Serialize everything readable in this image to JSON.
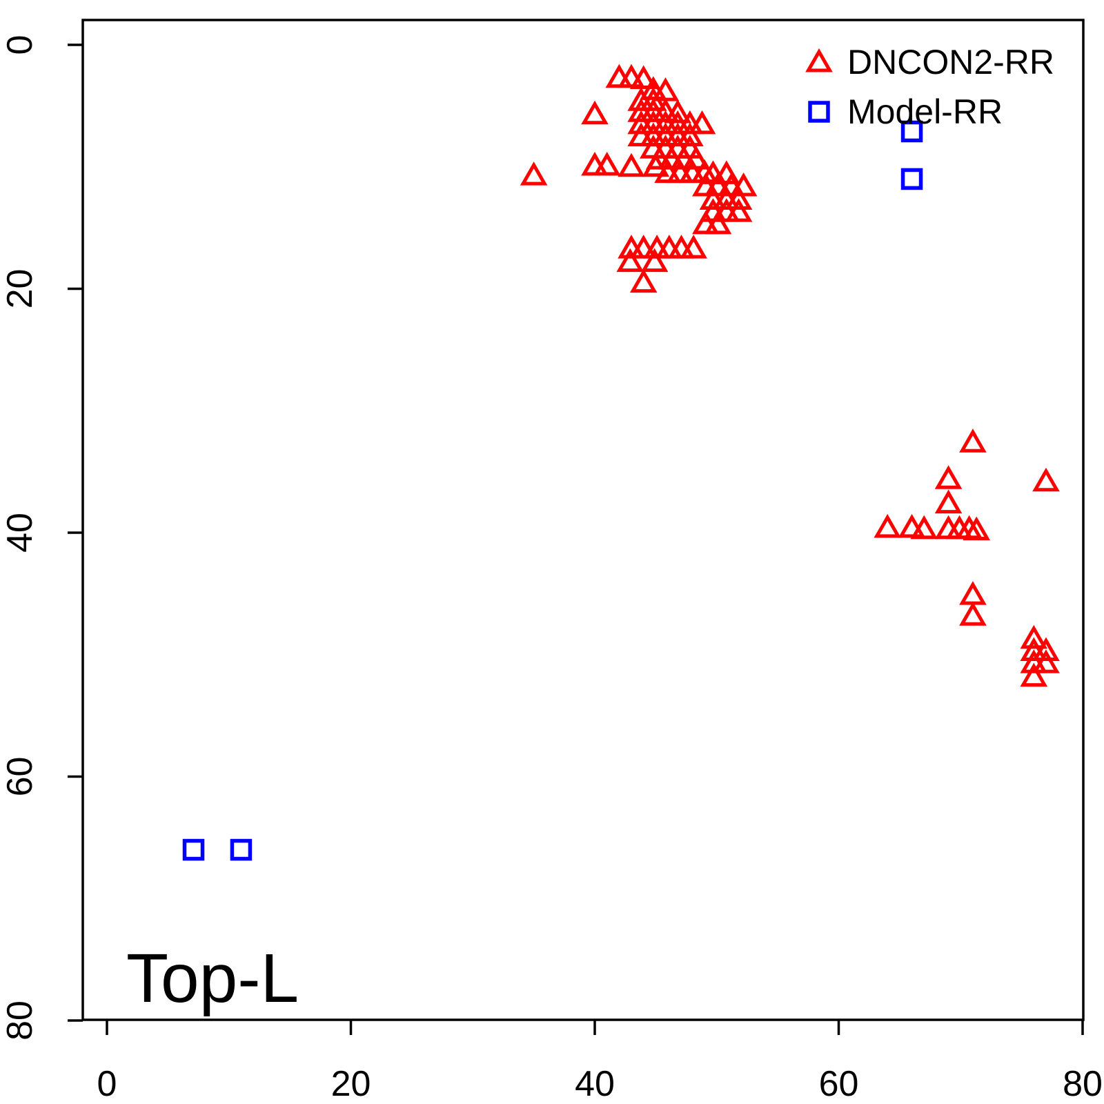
{
  "figure": {
    "background": "#ffffff",
    "frame_color": "#000000"
  },
  "chart_data": {
    "type": "scatter",
    "title": "",
    "xlabel": "",
    "ylabel": "",
    "annotation": "Top-L",
    "xlim": [
      0,
      80
    ],
    "ylim": [
      80,
      0
    ],
    "y_axis_reversed": true,
    "grid": false,
    "legend_position": "top-right",
    "x_ticks": [
      0,
      20,
      40,
      60,
      80
    ],
    "y_ticks": [
      0,
      20,
      40,
      60,
      80
    ],
    "series": [
      {
        "name": "DNCON2-RR",
        "marker": "triangle-up",
        "color": "#FF0000",
        "points": [
          [
            42,
            2.7
          ],
          [
            43,
            2.7
          ],
          [
            44,
            2.8
          ],
          [
            44.8,
            3.7
          ],
          [
            45.8,
            3.8
          ],
          [
            43.8,
            4.6
          ],
          [
            44.8,
            4.6
          ],
          [
            43.8,
            5.5
          ],
          [
            44.8,
            5.5
          ],
          [
            45.8,
            5.5
          ],
          [
            46.8,
            5.6
          ],
          [
            40,
            5.7
          ],
          [
            43.8,
            6.5
          ],
          [
            44.8,
            6.5
          ],
          [
            45.8,
            6.5
          ],
          [
            46.8,
            6.5
          ],
          [
            47.8,
            6.5
          ],
          [
            48.8,
            6.5
          ],
          [
            43.8,
            7.5
          ],
          [
            44.8,
            7.5
          ],
          [
            45.8,
            7.5
          ],
          [
            46.8,
            7.5
          ],
          [
            47.8,
            7.5
          ],
          [
            44.8,
            8.5
          ],
          [
            45.8,
            8.5
          ],
          [
            46.8,
            8.5
          ],
          [
            47.8,
            8.5
          ],
          [
            45.3,
            9.4
          ],
          [
            46.3,
            9.4
          ],
          [
            47.3,
            9.4
          ],
          [
            48.3,
            9.4
          ],
          [
            40,
            9.9
          ],
          [
            41,
            9.9
          ],
          [
            43,
            10
          ],
          [
            45,
            10
          ],
          [
            35,
            10.7
          ],
          [
            46,
            10.5
          ],
          [
            47,
            10.5
          ],
          [
            48,
            10.5
          ],
          [
            49,
            10.5
          ],
          [
            49.7,
            10.6
          ],
          [
            50.8,
            10.6
          ],
          [
            49.1,
            11.6
          ],
          [
            50.1,
            11.6
          ],
          [
            51.2,
            11.6
          ],
          [
            52.2,
            11.6
          ],
          [
            49.7,
            12.7
          ],
          [
            50.8,
            12.7
          ],
          [
            51.8,
            12.7
          ],
          [
            49.7,
            13.7
          ],
          [
            50.8,
            13.7
          ],
          [
            51.8,
            13.7
          ],
          [
            49.1,
            14.7
          ],
          [
            50.1,
            14.7
          ],
          [
            43,
            16.7
          ],
          [
            44,
            16.7
          ],
          [
            45.1,
            16.7
          ],
          [
            46.1,
            16.7
          ],
          [
            47.1,
            16.7
          ],
          [
            48.1,
            16.7
          ],
          [
            42.9,
            17.8
          ],
          [
            44.9,
            17.8
          ],
          [
            44,
            19.5
          ],
          [
            71,
            32.6
          ],
          [
            69,
            35.6
          ],
          [
            77,
            35.8
          ],
          [
            69,
            37.6
          ],
          [
            64,
            39.6
          ],
          [
            66,
            39.6
          ],
          [
            67,
            39.7
          ],
          [
            69,
            39.7
          ],
          [
            69.9,
            39.7
          ],
          [
            70.7,
            39.7
          ],
          [
            71.3,
            39.8
          ],
          [
            71,
            45.1
          ],
          [
            71,
            46.8
          ],
          [
            76,
            48.7
          ],
          [
            76,
            49.7
          ],
          [
            77,
            49.7
          ],
          [
            76,
            50.7
          ],
          [
            77,
            50.7
          ],
          [
            76,
            51.8
          ]
        ]
      },
      {
        "name": "Model-RR",
        "marker": "square",
        "color": "#0000FF",
        "points": [
          [
            66,
            7.1
          ],
          [
            66,
            11
          ],
          [
            7.1,
            66
          ],
          [
            11,
            66
          ]
        ]
      }
    ]
  }
}
